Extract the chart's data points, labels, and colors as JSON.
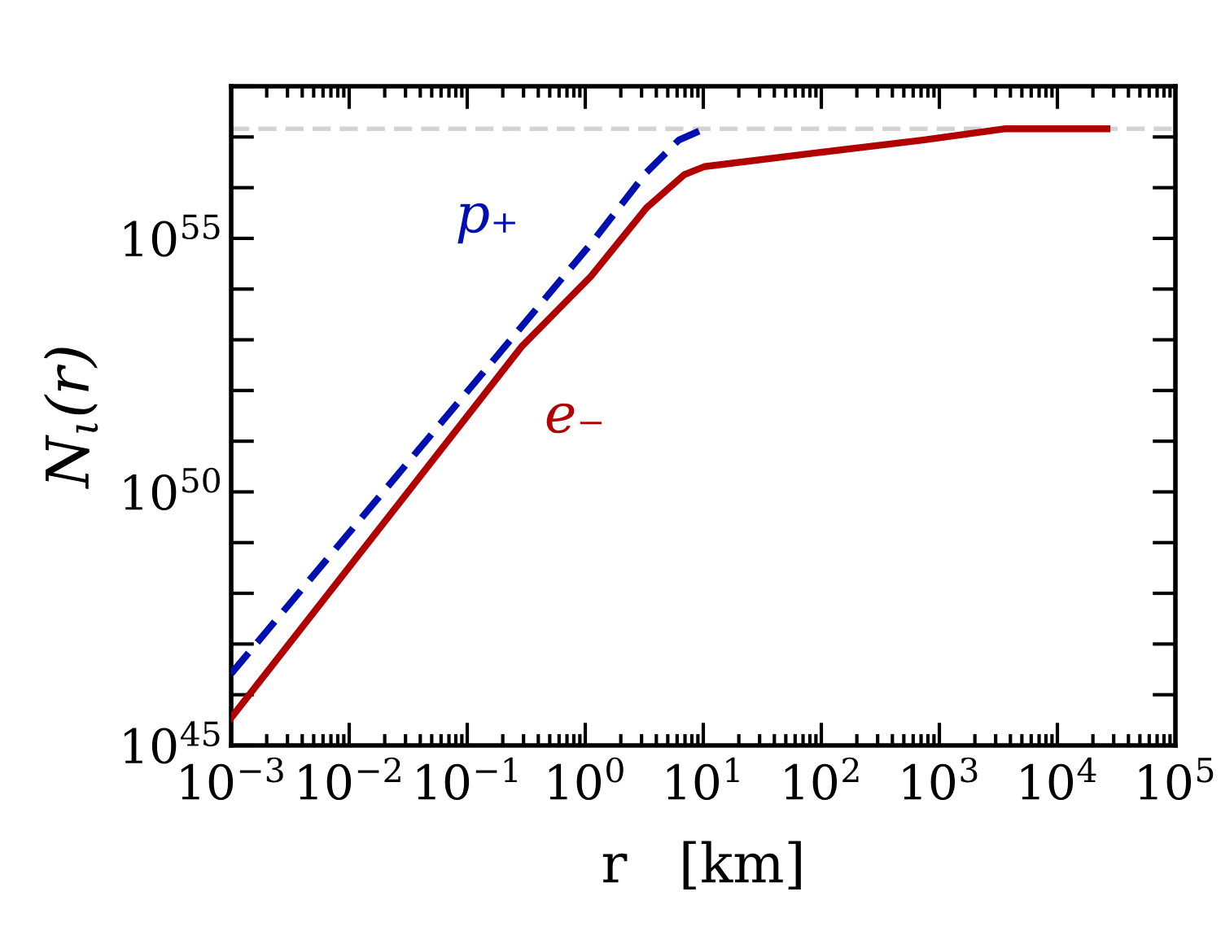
{
  "chart_data": {
    "type": "line",
    "xlabel": "r   [km]",
    "ylabel": "N$_{ι}$(r)",
    "log": "xy",
    "grid": false,
    "legend": false,
    "xlim": [
      0.001,
      100000
    ],
    "ylim": [
      1e+45,
      1e+58
    ],
    "xticks": [
      {
        "value": 0.001,
        "label": "10$^{−3}$"
      },
      {
        "value": 0.01,
        "label": "10$^{−2}$"
      },
      {
        "value": 0.1,
        "label": "10$^{−1}$"
      },
      {
        "value": 1,
        "label": "10$^{0}$"
      },
      {
        "value": 10,
        "label": "10$^{1}$"
      },
      {
        "value": 100,
        "label": "10$^{2}$"
      },
      {
        "value": 1000,
        "label": "10$^{3}$"
      },
      {
        "value": 10000,
        "label": "10$^{4}$"
      },
      {
        "value": 100000,
        "label": "10$^{5}$"
      }
    ],
    "yticks": [
      {
        "value": 1e+45,
        "label": "10$^{45}$"
      },
      {
        "value": 1e+46,
        "label": null
      },
      {
        "value": 1e+47,
        "label": null
      },
      {
        "value": 1e+48,
        "label": null
      },
      {
        "value": 1e+49,
        "label": null
      },
      {
        "value": 1e+50,
        "label": "10$^{50}$"
      },
      {
        "value": 1e+51,
        "label": null
      },
      {
        "value": 1e+52,
        "label": null
      },
      {
        "value": 1e+53,
        "label": null
      },
      {
        "value": 1e+54,
        "label": null
      },
      {
        "value": 1e+55,
        "label": "10$^{55}$"
      },
      {
        "value": 1e+56,
        "label": null
      },
      {
        "value": 1e+57,
        "label": null
      },
      {
        "value": 1e+58,
        "label": null
      }
    ],
    "ref_lines": [
      {
        "axis": "y",
        "value": 1.45e+57,
        "label": null,
        "color": "#d3d3d3",
        "line_style": "dashed"
      }
    ],
    "series": [
      {
        "name": "p₊",
        "color": "#0010b0",
        "line_style": "dashed",
        "x": [
          0.001,
          1.12,
          3.3,
          6.2,
          10.2
        ],
        "values": [
          2.6e+46,
          7.9e+54,
          2e+56,
          8.7e+56,
          1.45e+57
        ]
      },
      {
        "name": "e₋",
        "color": "#b00000",
        "line_style": "solid",
        "x": [
          0.001,
          0.29,
          1.12,
          3.3,
          6.9,
          10.2,
          87,
          724,
          3548,
          26300
        ],
        "values": [
          3.5e+45,
          7.4e+52,
          1.8e+54,
          4e+55,
          1.8e+56,
          2.6e+56,
          4.8e+56,
          8.7e+56,
          1.45e+57,
          1.45e+57
        ]
      }
    ]
  }
}
